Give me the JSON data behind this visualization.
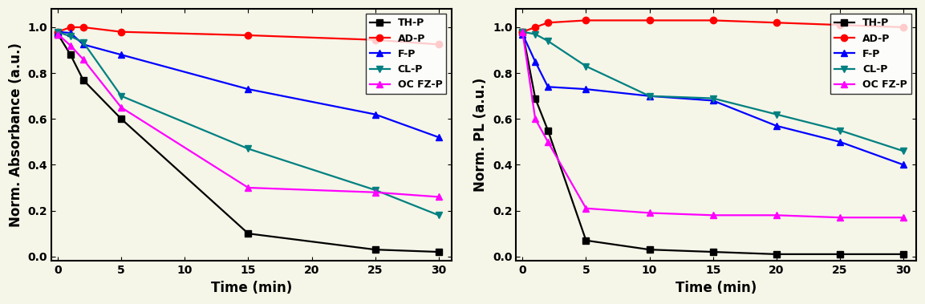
{
  "left_chart": {
    "ylabel": "Norm. Absorbance (a.u.)",
    "xlabel": "Time (min)",
    "xlim": [
      -0.5,
      31
    ],
    "ylim": [
      -0.02,
      1.08
    ],
    "yticks": [
      0.0,
      0.2,
      0.4,
      0.6,
      0.8,
      1.0
    ],
    "yticklabels": [
      "0.0",
      "0.2",
      "0.4",
      "0.6",
      "0.8",
      "1.0"
    ],
    "xticks": [
      0,
      5,
      10,
      15,
      20,
      25,
      30
    ],
    "xticklabels": [
      "0",
      "5",
      "10",
      "15",
      "20",
      "25",
      "30"
    ],
    "series": [
      {
        "label": "TH-P",
        "color": "black",
        "marker": "s",
        "x": [
          0,
          1,
          2,
          5,
          15,
          25,
          30
        ],
        "y": [
          0.97,
          0.88,
          0.77,
          0.6,
          0.1,
          0.03,
          0.02
        ]
      },
      {
        "label": "AD-P",
        "color": "red",
        "marker": "o",
        "x": [
          0,
          1,
          2,
          5,
          15,
          25,
          30
        ],
        "y": [
          0.98,
          1.0,
          1.0,
          0.98,
          0.965,
          0.945,
          0.925
        ]
      },
      {
        "label": "F-P",
        "color": "blue",
        "marker": "^",
        "x": [
          0,
          1,
          2,
          5,
          15,
          25,
          30
        ],
        "y": [
          0.98,
          0.975,
          0.925,
          0.88,
          0.73,
          0.62,
          0.52
        ]
      },
      {
        "label": "CL-P",
        "color": "#008080",
        "marker": "v",
        "x": [
          0,
          1,
          2,
          5,
          15,
          25,
          30
        ],
        "y": [
          0.98,
          0.96,
          0.935,
          0.7,
          0.47,
          0.29,
          0.18
        ]
      },
      {
        "label": "OC FZ-P",
        "color": "magenta",
        "marker": "^",
        "x": [
          0,
          1,
          2,
          5,
          15,
          25,
          30
        ],
        "y": [
          0.97,
          0.92,
          0.86,
          0.65,
          0.3,
          0.28,
          0.26
        ]
      }
    ]
  },
  "right_chart": {
    "ylabel": "Norm. PL (a.u.)",
    "xlabel": "Time (min)",
    "xlim": [
      -0.5,
      31
    ],
    "ylim": [
      -0.02,
      1.08
    ],
    "yticks": [
      0.0,
      0.2,
      0.4,
      0.6,
      0.8,
      1.0
    ],
    "yticklabels": [
      "0.0",
      "0.2",
      "0.4",
      "0.6",
      "0.8",
      "1.0"
    ],
    "xticks": [
      0,
      5,
      10,
      15,
      20,
      25,
      30
    ],
    "xticklabels": [
      "0",
      "5",
      "10",
      "15",
      "20",
      "25",
      "30"
    ],
    "series": [
      {
        "label": "TH-P",
        "color": "black",
        "marker": "s",
        "x": [
          0,
          1,
          2,
          5,
          10,
          15,
          20,
          25,
          30
        ],
        "y": [
          0.98,
          0.69,
          0.55,
          0.07,
          0.03,
          0.02,
          0.01,
          0.01,
          0.01
        ]
      },
      {
        "label": "AD-P",
        "color": "red",
        "marker": "o",
        "x": [
          0,
          1,
          2,
          5,
          10,
          15,
          20,
          25,
          30
        ],
        "y": [
          0.98,
          1.0,
          1.02,
          1.03,
          1.03,
          1.03,
          1.02,
          1.01,
          1.0
        ]
      },
      {
        "label": "F-P",
        "color": "blue",
        "marker": "^",
        "x": [
          0,
          1,
          2,
          5,
          10,
          15,
          20,
          25,
          30
        ],
        "y": [
          0.97,
          0.85,
          0.74,
          0.73,
          0.7,
          0.68,
          0.57,
          0.5,
          0.4
        ]
      },
      {
        "label": "CL-P",
        "color": "#008080",
        "marker": "v",
        "x": [
          0,
          1,
          2,
          5,
          10,
          15,
          20,
          25,
          30
        ],
        "y": [
          0.98,
          0.97,
          0.94,
          0.83,
          0.7,
          0.69,
          0.62,
          0.55,
          0.46
        ]
      },
      {
        "label": "OC FZ-P",
        "color": "magenta",
        "marker": "^",
        "x": [
          0,
          1,
          2,
          5,
          10,
          15,
          20,
          25,
          30
        ],
        "y": [
          0.98,
          0.6,
          0.5,
          0.21,
          0.19,
          0.18,
          0.18,
          0.17,
          0.17
        ]
      }
    ]
  },
  "bg_color": "#f5f5e8",
  "label_fontsize": 12,
  "tick_fontsize": 10,
  "legend_fontsize": 9,
  "linewidth": 1.6,
  "markersize": 6
}
